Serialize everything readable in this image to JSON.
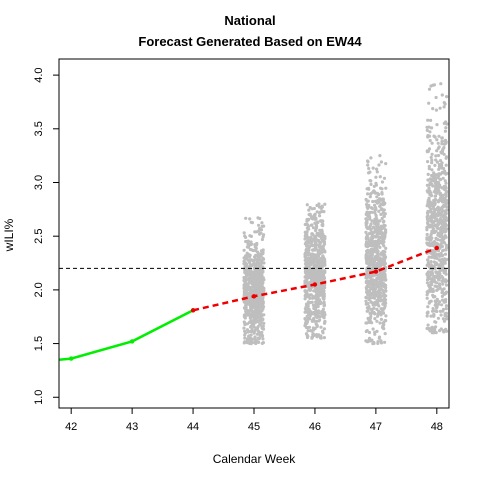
{
  "chart_data": {
    "type": "scatter",
    "title": "National",
    "subtitle": "Forecast Generated Based on EW44",
    "xlabel": "Calendar Week",
    "ylabel": "wILI%",
    "xlim": [
      41.8,
      48.2
    ],
    "ylim": [
      0.9,
      4.15
    ],
    "x_ticks": [
      "42",
      "43",
      "44",
      "45",
      "46",
      "47",
      "48"
    ],
    "y_ticks": [
      "1.0",
      "1.5",
      "2.0",
      "2.5",
      "3.0",
      "3.5",
      "4.0"
    ],
    "reference_line": {
      "y": 2.2,
      "style": "dashed",
      "color": "#000000"
    },
    "series": [
      {
        "role": "observed",
        "color": "#00ee00",
        "style": "solid",
        "x": [
          41.8,
          42,
          43,
          44
        ],
        "y": [
          1.35,
          1.36,
          1.52,
          1.81
        ]
      },
      {
        "role": "forecast",
        "color": "#ee0000",
        "style": "dashed",
        "x": [
          44,
          45,
          46,
          47,
          48
        ],
        "y": [
          1.81,
          1.94,
          2.05,
          2.17,
          2.39
        ]
      }
    ],
    "forecast_samples": [
      {
        "x": 45,
        "min": 1.5,
        "max": 2.67,
        "core_low": 1.6,
        "core_high": 2.35
      },
      {
        "x": 46,
        "min": 1.55,
        "max": 2.8,
        "core_low": 1.65,
        "core_high": 2.6
      },
      {
        "x": 47,
        "min": 1.5,
        "max": 3.25,
        "core_low": 1.65,
        "core_high": 2.8
      },
      {
        "x": 48,
        "min": 1.6,
        "max": 3.92,
        "core_low": 1.75,
        "core_high": 3.3
      }
    ],
    "sample_color": "#bebebe",
    "grid": false
  }
}
